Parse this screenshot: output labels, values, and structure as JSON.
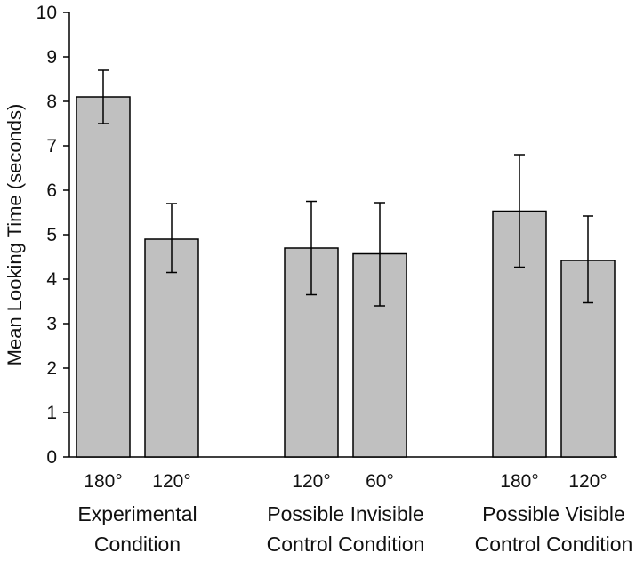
{
  "chart_data": {
    "type": "bar",
    "title": "",
    "xlabel": "",
    "ylabel": "Mean Looking Time (seconds)",
    "ylim": [
      0,
      10
    ],
    "yticks": [
      0,
      1,
      2,
      3,
      4,
      5,
      6,
      7,
      8,
      9,
      10
    ],
    "grid": false,
    "legend": "none",
    "bar_color": "#c0c0c0",
    "bar_edge_color": "#000000",
    "groups": [
      {
        "label_lines": [
          "Experimental",
          "Condition"
        ],
        "bars": [
          {
            "category": "180°",
            "value": 8.1,
            "error_low": 7.5,
            "error_high": 8.7
          },
          {
            "category": "120°",
            "value": 4.9,
            "error_low": 4.15,
            "error_high": 5.7
          }
        ]
      },
      {
        "label_lines": [
          "Possible Invisible",
          "Control Condition"
        ],
        "bars": [
          {
            "category": "120°",
            "value": 4.7,
            "error_low": 3.65,
            "error_high": 5.75
          },
          {
            "category": "60°",
            "value": 4.57,
            "error_low": 3.4,
            "error_high": 5.72
          }
        ]
      },
      {
        "label_lines": [
          "Possible Visible",
          "Control Condition"
        ],
        "bars": [
          {
            "category": "180°",
            "value": 5.53,
            "error_low": 4.27,
            "error_high": 6.8
          },
          {
            "category": "120°",
            "value": 4.42,
            "error_low": 3.47,
            "error_high": 5.42
          }
        ]
      }
    ]
  }
}
